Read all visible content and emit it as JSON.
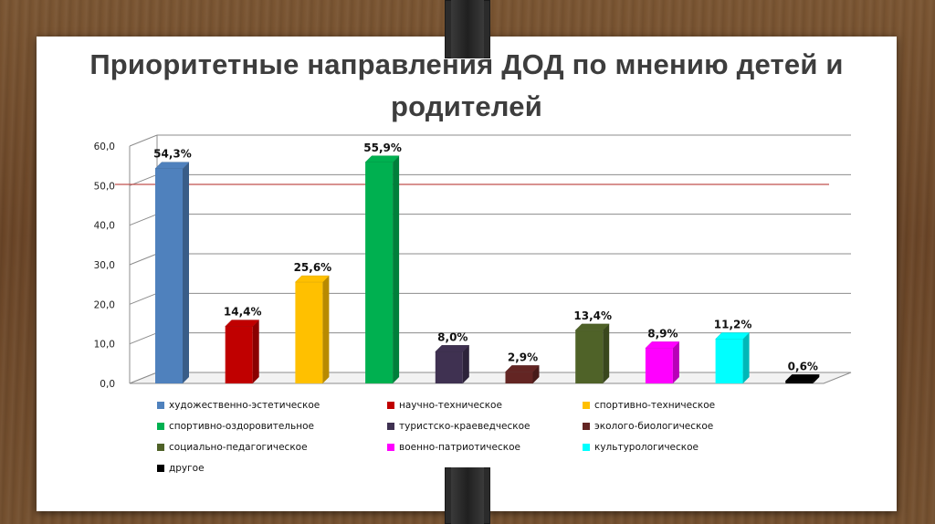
{
  "title": "Приоритетные направления ДОД  по мнению детей и родителей",
  "chart_data": {
    "type": "bar",
    "title": "",
    "ylim": [
      0,
      60
    ],
    "y_ticks": [
      "0,0",
      "10,0",
      "20,0",
      "30,0",
      "40,0",
      "50,0",
      "60,0"
    ],
    "grid": true,
    "legend_position": "bottom",
    "categories": [
      "художественно-эстетическое",
      "научно-техническое",
      "спортивно-техническое",
      "спортивно-оздоровительное",
      "туристско-краеведческое",
      "эколого-биологическое",
      "социально-педагогическое",
      "военно-патриотическое",
      "культурологическое",
      "другое"
    ],
    "values": [
      54.3,
      14.4,
      25.6,
      55.9,
      8.0,
      2.9,
      13.4,
      8.9,
      11.2,
      0.6
    ],
    "value_labels": [
      "54,3%",
      "14,4%",
      "25,6%",
      "55,9%",
      "8,0%",
      "2,9%",
      "13,4%",
      "8,9%",
      "11,2%",
      "0,6%"
    ],
    "colors": [
      "#4f81bd",
      "#c00000",
      "#ffc000",
      "#00b050",
      "#3f3151",
      "#632523",
      "#4f6228",
      "#ff00ff",
      "#00ffff",
      "#000000"
    ]
  }
}
